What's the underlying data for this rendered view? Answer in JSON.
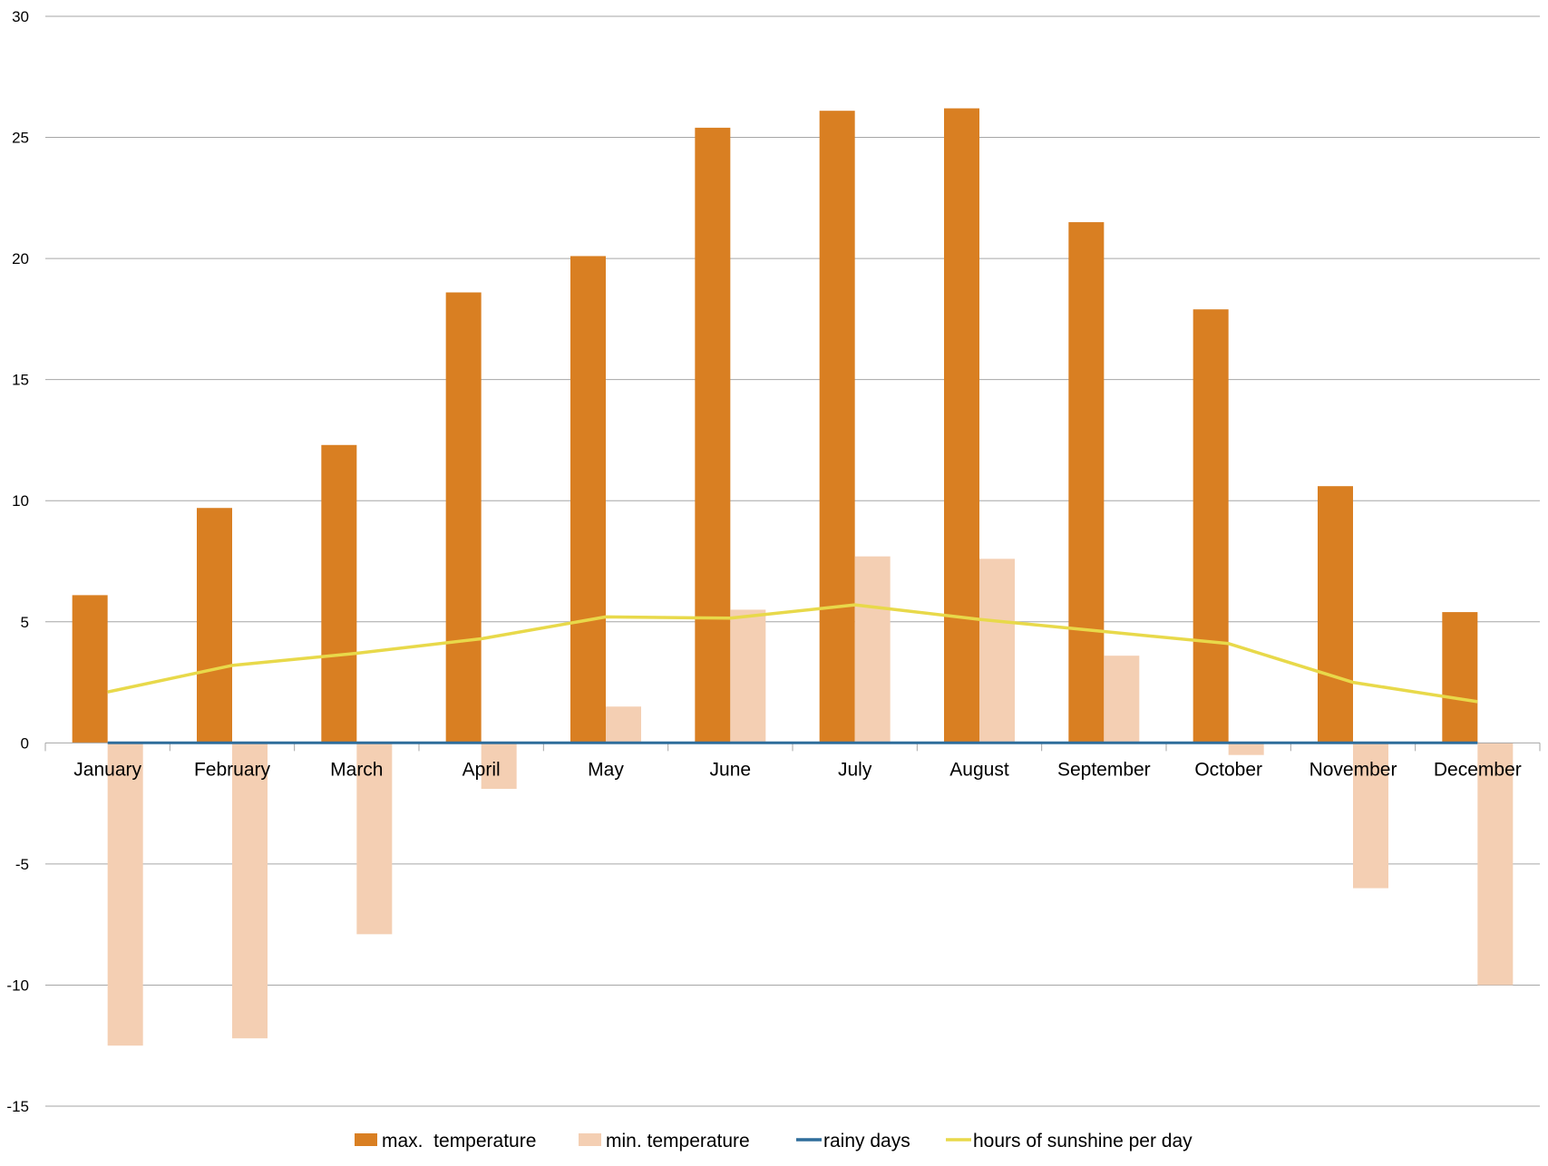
{
  "chart_data": {
    "type": "bar",
    "categories": [
      "January",
      "February",
      "March",
      "April",
      "May",
      "June",
      "July",
      "August",
      "September",
      "October",
      "November",
      "December"
    ],
    "series": [
      {
        "name": "max.  temperature",
        "kind": "bar",
        "color": "#D97F22",
        "values": [
          6.1,
          9.7,
          12.3,
          18.6,
          20.1,
          25.4,
          26.1,
          26.2,
          21.5,
          17.9,
          10.6,
          5.4
        ]
      },
      {
        "name": "min. temperature",
        "kind": "bar",
        "color": "#F4CFB3",
        "values": [
          -12.5,
          -12.2,
          -7.9,
          -1.9,
          1.5,
          5.5,
          7.7,
          7.6,
          3.6,
          -0.5,
          -6.0,
          -10.0
        ]
      },
      {
        "name": "rainy days",
        "kind": "line",
        "color": "#2E6D9B",
        "values": [
          0,
          0,
          0,
          0,
          0,
          0,
          0,
          0,
          0,
          0,
          0,
          0
        ]
      },
      {
        "name": "hours of sunshine per day",
        "kind": "line",
        "color": "#E8D94A",
        "values": [
          2.1,
          3.2,
          3.7,
          4.3,
          5.2,
          5.15,
          5.7,
          5.1,
          4.6,
          4.1,
          2.5,
          1.7
        ]
      }
    ],
    "yticks": [
      30,
      25,
      20,
      15,
      10,
      5,
      0,
      -5,
      -10,
      -15
    ],
    "ylim": [
      -15,
      30
    ],
    "grid": true,
    "legend_position": "bottom",
    "title": "",
    "xlabel": "",
    "ylabel": ""
  }
}
